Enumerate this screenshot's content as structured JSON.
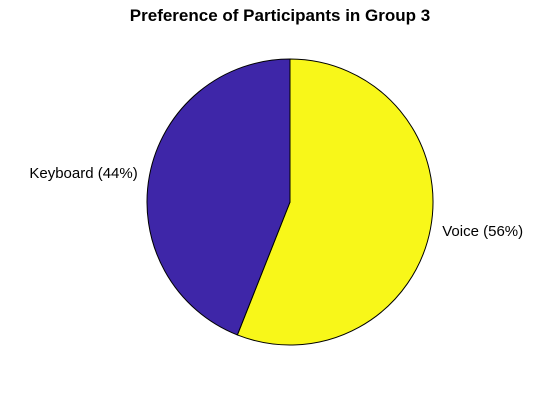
{
  "chart_data": {
    "type": "pie",
    "title": "Preference of Participants in Group 3",
    "slices": [
      {
        "label": "Voice (56%)",
        "value": 56,
        "color": "#f8f719"
      },
      {
        "label": "Keyboard (44%)",
        "value": 44,
        "color": "#3e26a8"
      }
    ]
  }
}
